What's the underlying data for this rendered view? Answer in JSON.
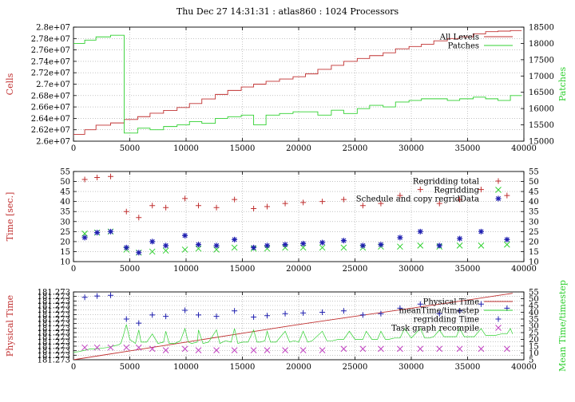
{
  "figure_title": "Thu Dec 27 14:31:31 : atlas860 : 1024 Processors",
  "colors": {
    "red": "#c03030",
    "green": "#30d030",
    "blue": "#2020b0",
    "magenta": "#c040c0",
    "grid": "#a0a0a0"
  },
  "chart_data": [
    {
      "type": "line",
      "ylabel": "Cells",
      "y2label": "Patches",
      "xlim": [
        0,
        40000
      ],
      "ylim": [
        26000000,
        28000000
      ],
      "y2lim": [
        15000,
        18500
      ],
      "xticks": [
        "0",
        "5000",
        "10000",
        "15000",
        "20000",
        "25000",
        "30000",
        "35000",
        "40000"
      ],
      "yticks": [
        "2.6e+07",
        "2.62e+07",
        "2.64e+07",
        "2.66e+07",
        "2.68e+07",
        "2.7e+07",
        "2.72e+07",
        "2.74e+07",
        "2.76e+07",
        "2.78e+07",
        "2.8e+07"
      ],
      "y2ticks": [
        "15000",
        "15500",
        "16000",
        "16500",
        "17000",
        "17500",
        "18000",
        "18500"
      ],
      "grid": true,
      "legend": "top-right",
      "series": [
        {
          "name": "All Levels",
          "axis": "left",
          "color": "red",
          "style": "step",
          "x": [
            0,
            1000,
            2000,
            3300,
            4500,
            5700,
            6800,
            8000,
            9200,
            10300,
            11400,
            12600,
            13700,
            14900,
            16000,
            17100,
            18300,
            19500,
            20600,
            21700,
            22900,
            24000,
            25200,
            26300,
            27500,
            28600,
            29800,
            30900,
            32000,
            33200,
            34300,
            35500,
            36600,
            37700,
            38800
          ],
          "y": [
            26120000,
            26200000,
            26280000,
            26320000,
            26380000,
            26430000,
            26490000,
            26540000,
            26590000,
            26660000,
            26740000,
            26820000,
            26890000,
            26950000,
            27000000,
            27050000,
            27090000,
            27130000,
            27180000,
            27260000,
            27330000,
            27400000,
            27450000,
            27500000,
            27550000,
            27620000,
            27660000,
            27700000,
            27760000,
            27800000,
            27830000,
            27880000,
            27920000,
            27930000,
            27940000
          ]
        },
        {
          "name": "Patches",
          "axis": "right",
          "color": "green",
          "style": "step",
          "x": [
            0,
            1000,
            2000,
            3300,
            4500,
            5700,
            6800,
            8000,
            9200,
            10300,
            11400,
            12600,
            13700,
            14900,
            16000,
            17100,
            18300,
            19500,
            20600,
            21700,
            22900,
            24000,
            25200,
            26300,
            27500,
            28600,
            29800,
            30900,
            32000,
            33200,
            34300,
            35500,
            36600,
            37700,
            38800
          ],
          "y": [
            18000,
            18100,
            18200,
            18250,
            15250,
            15400,
            15350,
            15450,
            15500,
            15600,
            15550,
            15700,
            15750,
            15800,
            15500,
            15800,
            15850,
            15900,
            15900,
            15800,
            15950,
            15850,
            16000,
            16100,
            16050,
            16200,
            16250,
            16300,
            16300,
            16250,
            16300,
            16350,
            16300,
            16250,
            16400
          ]
        }
      ]
    },
    {
      "type": "scatter",
      "ylabel": "Time [sec.]",
      "xlim": [
        0,
        40000
      ],
      "ylim": [
        10,
        55
      ],
      "y2lim": [
        10,
        55
      ],
      "xticks": [
        "0",
        "5000",
        "10000",
        "15000",
        "20000",
        "25000",
        "30000",
        "35000",
        "40000"
      ],
      "yticks": [
        "10",
        "15",
        "20",
        "25",
        "30",
        "35",
        "40",
        "45",
        "50",
        "55"
      ],
      "y2ticks": [
        "10",
        "15",
        "20",
        "25",
        "30",
        "35",
        "40",
        "45",
        "50",
        "55"
      ],
      "grid": true,
      "legend": "top-right",
      "series": [
        {
          "name": "Regridding total",
          "marker": "plus",
          "color": "red",
          "x": [
            1000,
            2100,
            3300,
            4700,
            5800,
            7000,
            8200,
            9900,
            11100,
            12700,
            14300,
            16000,
            17200,
            18800,
            20400,
            22100,
            24000,
            25700,
            27300,
            29000,
            30800,
            32500,
            34300,
            36200,
            38500
          ],
          "y": [
            51,
            52,
            52.5,
            35,
            32,
            38,
            37,
            41.5,
            38,
            37,
            41,
            36.5,
            37.5,
            39,
            39.5,
            40,
            41,
            38,
            39,
            43,
            46,
            39,
            41,
            46,
            43
          ]
        },
        {
          "name": "Regridding",
          "marker": "cross",
          "color": "green",
          "x": [
            1000,
            2100,
            3300,
            4700,
            5800,
            7000,
            8200,
            9900,
            11100,
            12700,
            14300,
            16000,
            17200,
            18800,
            20400,
            22100,
            24000,
            25700,
            27300,
            29000,
            30800,
            32500,
            34300,
            36200,
            38500
          ],
          "y": [
            24,
            24.5,
            25,
            16,
            14.5,
            15,
            15.5,
            16,
            16.5,
            16,
            17,
            16.5,
            16.5,
            17,
            17,
            17,
            17,
            17,
            17.5,
            17.5,
            18,
            17.5,
            18,
            18,
            18.5
          ]
        },
        {
          "name": "Schedule and copy regridData",
          "marker": "star",
          "color": "blue",
          "x": [
            1000,
            2100,
            3300,
            4700,
            5800,
            7000,
            8200,
            9900,
            11100,
            12700,
            14300,
            16000,
            17200,
            18800,
            20400,
            22100,
            24000,
            25700,
            27300,
            29000,
            30800,
            32500,
            34300,
            36200,
            38500
          ],
          "y": [
            22,
            24.5,
            25,
            17,
            14.5,
            20,
            18,
            23,
            18.5,
            18,
            21,
            17,
            18,
            18.5,
            19,
            19.5,
            20.5,
            18,
            18.5,
            22,
            25,
            18,
            21.5,
            25,
            21
          ]
        }
      ]
    },
    {
      "type": "line",
      "ylabel": "Physical Time",
      "y2label": "Mean Time/timestep",
      "xlim": [
        0,
        40000
      ],
      "ylim": [
        0,
        1
      ],
      "y2lim": [
        5,
        55
      ],
      "xticks": [
        "0",
        "5000",
        "10000",
        "15000",
        "20000",
        "25000",
        "30000",
        "35000",
        "40000"
      ],
      "yticks": [
        "181.273",
        "181.273",
        "181.273",
        "181.273",
        "181.273",
        "181.273",
        "181.273",
        "181.273",
        "181.273",
        "181.273",
        "181.273",
        "181.273",
        "181.273",
        "181.273",
        "181.273",
        "181.273"
      ],
      "y2ticks": [
        "5",
        "10",
        "15",
        "20",
        "25",
        "30",
        "35",
        "40",
        "45",
        "50",
        "55"
      ],
      "grid": true,
      "legend": "top-right",
      "series": [
        {
          "name": "Physical Time",
          "axis": "left",
          "color": "red",
          "style": "line",
          "x": [
            0,
            5000,
            10000,
            15000,
            20000,
            25000,
            30000,
            35000,
            39000
          ],
          "y": [
            0.0,
            0.13,
            0.26,
            0.39,
            0.52,
            0.64,
            0.76,
            0.88,
            0.98
          ]
        },
        {
          "name": "meanTime/timestep",
          "axis": "right",
          "color": "green",
          "style": "spiky-line",
          "x": [
            0,
            500,
            1000,
            1500,
            2000,
            2500,
            3000,
            3500,
            4000,
            4200,
            4400,
            4700,
            5000,
            5500,
            5800,
            6000,
            6500,
            7000,
            7500,
            8000,
            8200,
            8500,
            9000,
            9500,
            9900,
            10200,
            10500,
            11000,
            11100,
            11500,
            12000,
            12700,
            13000,
            13500,
            14000,
            14300,
            14600,
            15000,
            15500,
            16000,
            16300,
            16600,
            17000,
            17200,
            17500,
            18000,
            18800,
            19200,
            19600,
            20000,
            20400,
            20800,
            21200,
            22100,
            22500,
            23000,
            23500,
            24000,
            24500,
            25000,
            25700,
            26000,
            26500,
            27000,
            27300,
            27700,
            28000,
            28500,
            29000,
            29400,
            30000,
            30800,
            31200,
            31600,
            32000,
            32500,
            32900,
            33500,
            34000,
            34300,
            34700,
            35200,
            35600,
            36200,
            36600,
            37000,
            37500,
            38000,
            38500,
            38800,
            39000
          ],
          "y": [
            10.5,
            11,
            12,
            13,
            13,
            13.5,
            14,
            15,
            16,
            17,
            22,
            31,
            20,
            17,
            27,
            18,
            18,
            24,
            17,
            18,
            26,
            17,
            17,
            19,
            28,
            18,
            17,
            18,
            27,
            17,
            18,
            27,
            17,
            19,
            18,
            28,
            17,
            18,
            18,
            27,
            18,
            18,
            19,
            26,
            18,
            18,
            26,
            18,
            19,
            18,
            26,
            18,
            19,
            26,
            19,
            19,
            20,
            20,
            26,
            20,
            20,
            26,
            20,
            20,
            26,
            20,
            20,
            21,
            21,
            28,
            21,
            28,
            21,
            21,
            22,
            27,
            22,
            22,
            22,
            28,
            22,
            22,
            22,
            28,
            23,
            23,
            23,
            24,
            24,
            28,
            24
          ]
        },
        {
          "name": "regridding Time",
          "axis": "right",
          "marker": "plus",
          "color": "blue",
          "x": [
            1000,
            2100,
            3300,
            4700,
            5800,
            7000,
            8200,
            9900,
            11100,
            12700,
            14300,
            16000,
            17200,
            18800,
            20400,
            22100,
            24000,
            25700,
            27300,
            29000,
            30800,
            32500,
            34300,
            36200,
            38500
          ],
          "y": [
            51,
            52,
            52.5,
            35,
            32,
            38,
            37,
            41.5,
            38,
            37,
            41,
            36.5,
            37.5,
            39,
            39.5,
            40,
            41,
            38,
            39,
            43,
            46,
            39,
            41,
            46,
            43
          ]
        },
        {
          "name": "Task graph recompile",
          "axis": "right",
          "marker": "cross",
          "color": "magenta",
          "x": [
            1000,
            2100,
            3300,
            4700,
            5800,
            7000,
            8200,
            9900,
            11100,
            12700,
            14300,
            16000,
            17200,
            18800,
            20400,
            22100,
            24000,
            25700,
            27300,
            29000,
            30800,
            32500,
            34300,
            36200,
            38500
          ],
          "y": [
            14,
            14,
            14,
            14,
            14,
            13,
            12,
            13,
            12,
            12,
            12,
            12,
            12,
            12,
            12,
            12,
            13,
            13,
            13,
            13,
            13,
            13,
            13,
            13,
            13
          ]
        }
      ]
    }
  ]
}
